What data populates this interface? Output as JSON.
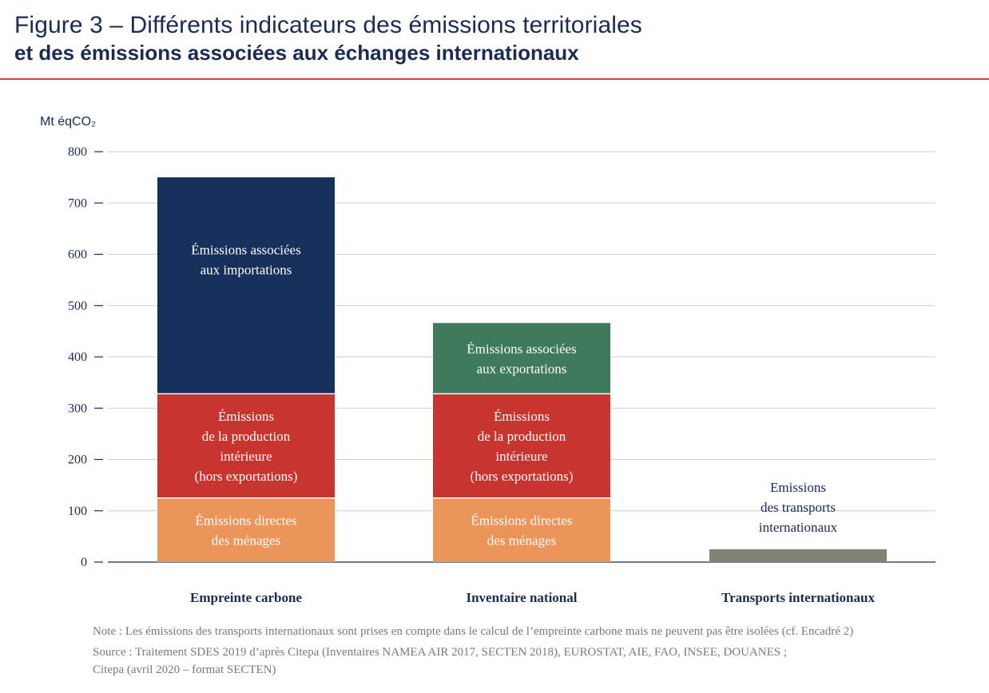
{
  "header": {
    "title_line1": "Figure 3 – Différents indicateurs des émissions territoriales",
    "title_line2": "et des émissions associées aux échanges internationaux",
    "accent_color": "#d0493d"
  },
  "chart_data": {
    "type": "bar",
    "stacked": true,
    "ylabel": "Mt éqCO₂",
    "ylim": [
      0,
      800
    ],
    "yticks": [
      0,
      100,
      200,
      300,
      400,
      500,
      600,
      700,
      800
    ],
    "grid": true,
    "categories": [
      "Empreinte carbone",
      "Inventaire national",
      "Transports internationaux"
    ],
    "series": [
      {
        "label_lines": [
          "Émissions directes",
          "des ménages"
        ],
        "color": "#eb955a",
        "text_color": "#ffffff",
        "values": [
          125,
          125,
          0
        ]
      },
      {
        "label_lines": [
          "Émissions",
          "de la production",
          "intérieure",
          "(hors exportations)"
        ],
        "color": "#c7352e",
        "text_color": "#ffffff",
        "values": [
          203,
          203,
          0
        ]
      },
      {
        "label_lines": [
          "Émissions associées",
          "aux importations"
        ],
        "color": "#17305b",
        "text_color": "#ffffff",
        "values": [
          422,
          0,
          0
        ]
      },
      {
        "label_lines": [
          "Émissions associées",
          "aux exportations"
        ],
        "color": "#3f7a5a",
        "text_color": "#ffffff",
        "values": [
          0,
          138,
          0
        ]
      },
      {
        "label_lines": [
          "Emissions",
          "des transports",
          "internationaux"
        ],
        "color": "#818472",
        "text_color": "#1b2b52",
        "label_outside": true,
        "values": [
          0,
          0,
          25
        ]
      }
    ]
  },
  "notes": {
    "note": "Note : Les émissions des transports internationaux sont prises en compte dans le calcul de l’empreinte carbone mais ne peuvent pas être isolées (cf. Encadré 2)",
    "source_line1": "Source : Traitement SDES 2019 d’après Citepa (Inventaires NAMEA AIR 2017, SECTEN 2018), EUROSTAT, AIE, FAO, INSEE, DOUANES ;",
    "source_line2": "Citepa (avril 2020 – format SECTEN)"
  }
}
